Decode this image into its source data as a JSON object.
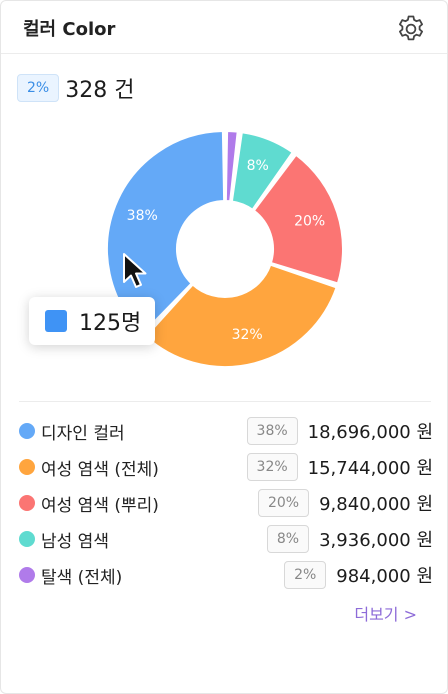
{
  "header": {
    "title": "컬러 Color",
    "settings_icon": "gear-icon"
  },
  "summary": {
    "pct_badge": "2%",
    "count": "328 건"
  },
  "chart_data": {
    "type": "pie",
    "donut": true,
    "title": "",
    "slices": [
      {
        "label": "디자인 컬러",
        "value": 38,
        "display": "38%",
        "color": "#64a9f7"
      },
      {
        "label": "여성 염색 (전체)",
        "value": 32,
        "display": "32%",
        "color": "#ffa53e"
      },
      {
        "label": "여성 염색 (뿌리)",
        "value": 20,
        "display": "20%",
        "color": "#fb7573"
      },
      {
        "label": "남성 염색",
        "value": 8,
        "display": "8%",
        "color": "#5fdbd0"
      },
      {
        "label": "탈색 (전체)",
        "value": 2,
        "display": "",
        "color": "#b07bea"
      }
    ]
  },
  "tooltip": {
    "value": "125명",
    "color": "#3f93f5"
  },
  "legend": [
    {
      "name": "디자인 컬러",
      "pct": "38%",
      "amount": "18,696,000 원",
      "color": "#64a9f7"
    },
    {
      "name": "여성 염색 (전체)",
      "pct": "32%",
      "amount": "15,744,000 원",
      "color": "#ffa53e"
    },
    {
      "name": "여성 염색 (뿌리)",
      "pct": "20%",
      "amount": "9,840,000 원",
      "color": "#fb7573"
    },
    {
      "name": "남성 염색",
      "pct": "8%",
      "amount": "3,936,000 원",
      "color": "#5fdbd0"
    },
    {
      "name": "탈색 (전체)",
      "pct": "2%",
      "amount": "984,000 원",
      "color": "#b07bea"
    }
  ],
  "more_link": "더보기 >"
}
